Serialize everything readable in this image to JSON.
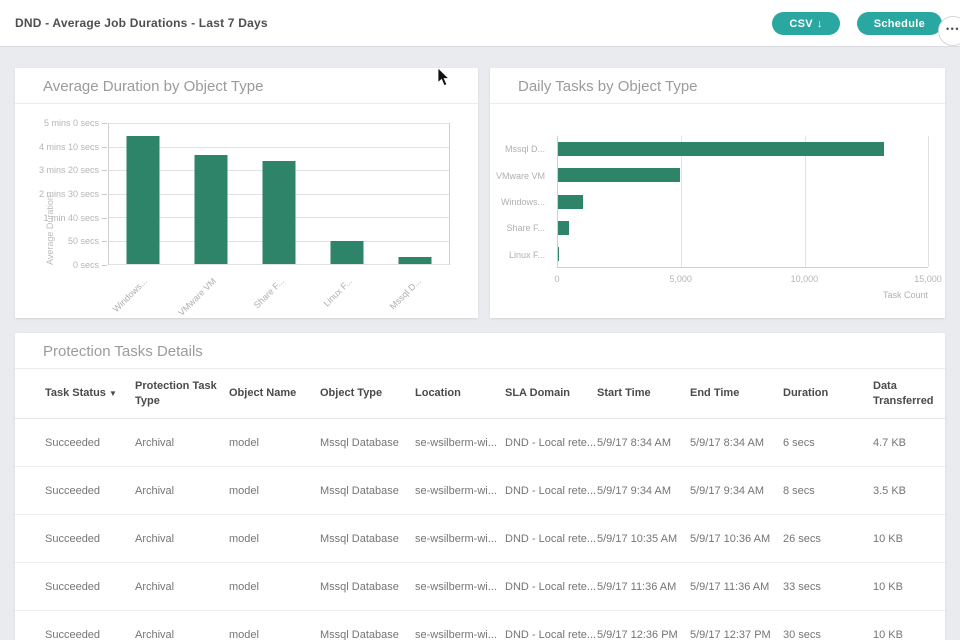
{
  "topbar": {
    "title": "DND - Average Job Durations - Last 7 Days",
    "csv_button": {
      "label": "CSV",
      "icon": "↓"
    },
    "schedule_button": {
      "label": "Schedule"
    },
    "more_button": {
      "label": "•••"
    }
  },
  "colors": {
    "accent": "#2aa7a0",
    "bar": "#2d8468",
    "background": "#e9ebee"
  },
  "chart_data": [
    {
      "type": "bar",
      "orientation": "vertical",
      "title": "Average Duration by Object Type",
      "categories": [
        "Windows...",
        "VMware VM",
        "Share F...",
        "Linux F...",
        "Mssql D..."
      ],
      "values": [
        272,
        233,
        220,
        50,
        15
      ],
      "values_unit": "seconds",
      "ylabel": "Average Duration",
      "xlabel": "",
      "ytick_labels": [
        "5 mins 0 secs",
        "4 mins 10 secs",
        "3 mins 20 secs",
        "2 mins 30 secs",
        "1 min 40 secs",
        "50 secs",
        "0 secs"
      ],
      "ytick_values": [
        300,
        250,
        200,
        150,
        100,
        50,
        0
      ],
      "ylim": [
        0,
        300
      ],
      "grid": true,
      "legend": "none"
    },
    {
      "type": "bar",
      "orientation": "horizontal",
      "title": "Daily Tasks by Object Type",
      "categories": [
        "Mssql D...",
        "VMware VM",
        "Windows...",
        "Share F...",
        "Linux F..."
      ],
      "values": [
        13200,
        4950,
        1000,
        450,
        50
      ],
      "xlabel": "Task Count",
      "xtick_labels": [
        "0",
        "5,000",
        "10,000",
        "15,000"
      ],
      "xtick_values": [
        0,
        5000,
        10000,
        15000
      ],
      "xlim": [
        0,
        15000
      ],
      "grid": true,
      "legend": "none"
    }
  ],
  "table": {
    "title": "Protection Tasks Details",
    "sort_arrow": "▼",
    "columns": [
      "Task Status",
      "Protection Task Type",
      "Object Name",
      "Object Type",
      "Location",
      "SLA Domain",
      "Start Time",
      "End Time",
      "Duration",
      "Data Transferred"
    ],
    "rows": [
      [
        "Succeeded",
        "Archival",
        "model",
        "Mssql Database",
        "se-wsilberm-wi...",
        "DND - Local rete...",
        "5/9/17 8:34 AM",
        "5/9/17 8:34 AM",
        "6 secs",
        "4.7 KB"
      ],
      [
        "Succeeded",
        "Archival",
        "model",
        "Mssql Database",
        "se-wsilberm-wi...",
        "DND - Local rete...",
        "5/9/17 9:34 AM",
        "5/9/17 9:34 AM",
        "8 secs",
        "3.5 KB"
      ],
      [
        "Succeeded",
        "Archival",
        "model",
        "Mssql Database",
        "se-wsilberm-wi...",
        "DND - Local rete...",
        "5/9/17 10:35 AM",
        "5/9/17 10:36 AM",
        "26 secs",
        "10 KB"
      ],
      [
        "Succeeded",
        "Archival",
        "model",
        "Mssql Database",
        "se-wsilberm-wi...",
        "DND - Local rete...",
        "5/9/17 11:36 AM",
        "5/9/17 11:36 AM",
        "33 secs",
        "10 KB"
      ],
      [
        "Succeeded",
        "Archival",
        "model",
        "Mssql Database",
        "se-wsilberm-wi...",
        "DND - Local rete...",
        "5/9/17 12:36 PM",
        "5/9/17 12:37 PM",
        "30 secs",
        "10 KB"
      ]
    ]
  }
}
